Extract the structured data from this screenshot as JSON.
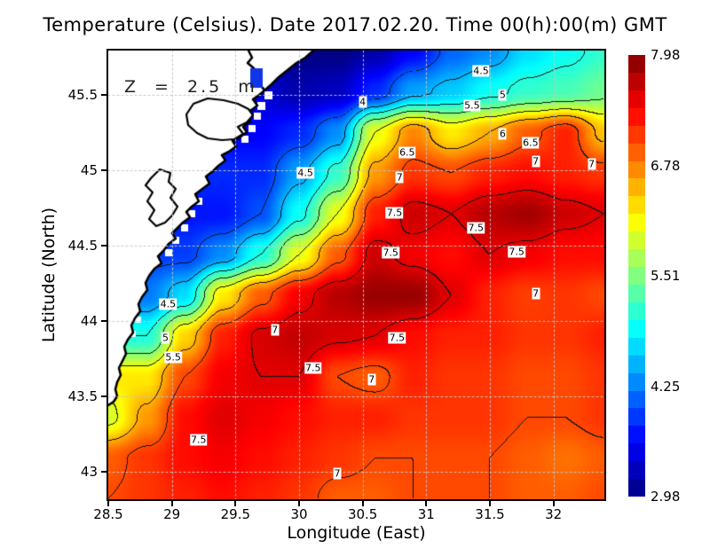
{
  "title": "Temperature (Celsius). Date 2017.02.20. Time 00(h):00(m) GMT",
  "annotation": "Z = 2.5 m",
  "axes": {
    "x": {
      "label": "Longitude (East)",
      "ticks": [
        "28.5",
        "29",
        "29.5",
        "30",
        "30.5",
        "31",
        "31.5",
        "32"
      ],
      "tick_values": [
        28.5,
        29,
        29.5,
        30,
        30.5,
        31,
        31.5,
        32
      ]
    },
    "y": {
      "label": "Latitude (North)",
      "ticks": [
        "45.5",
        "45",
        "44.5",
        "44",
        "43.5",
        "43"
      ],
      "tick_values": [
        45.5,
        45,
        44.5,
        44,
        43.5,
        43
      ]
    }
  },
  "colorbar": {
    "labels": [
      "7.98",
      "6.78",
      "5.51",
      "4.25",
      "2.98"
    ],
    "min": 2.98,
    "max": 7.98,
    "segments": 25,
    "top_color": "#8b0000",
    "bottom_color": "#00008b"
  },
  "chart_data": {
    "type": "heatmap",
    "title": "Temperature (Celsius). Date 2017.02.20. Time 00(h):00(m) GMT",
    "variable": "Temperature",
    "units": "Celsius",
    "depth_label": "Z = 2.5 m",
    "date": "2017.02.20",
    "time": "00(h):00(m) GMT",
    "xlabel": "Longitude (East)",
    "ylabel": "Latitude (North)",
    "xlim": [
      28.5,
      32.4
    ],
    "ylim": [
      42.82,
      45.79
    ],
    "grid": true,
    "colormap": "jet",
    "cmin": 2.98,
    "cmax": 7.98,
    "contour_interval": 0.5,
    "land_color": "#ffffff",
    "coast_color": "#000000",
    "lon": [
      28.5,
      28.8,
      29.1,
      29.4,
      29.7,
      30.0,
      30.3,
      30.6,
      30.9,
      31.2,
      31.5,
      31.8,
      32.1,
      32.4
    ],
    "lat": [
      45.78,
      45.51,
      45.24,
      44.97,
      44.7,
      44.43,
      44.16,
      43.89,
      43.62,
      43.35,
      43.08,
      42.81
    ],
    "values": [
      [
        null,
        null,
        null,
        null,
        null,
        null,
        3.0,
        3.2,
        3.6,
        4.1,
        4.3,
        4.7,
        4.9,
        5.1
      ],
      [
        null,
        null,
        null,
        null,
        3.4,
        3.2,
        3.3,
        3.8,
        4.4,
        4.6,
        4.9,
        5.1,
        5.2,
        5.4
      ],
      [
        null,
        null,
        null,
        null,
        3.6,
        3.8,
        4.3,
        6.0,
        6.7,
        6.2,
        6.5,
        6.9,
        7.2,
        6.4
      ],
      [
        null,
        null,
        null,
        null,
        3.8,
        4.4,
        5.1,
        6.6,
        7.1,
        7.0,
        7.2,
        7.3,
        7.2,
        7.1
      ],
      [
        null,
        null,
        null,
        3.7,
        4.0,
        4.9,
        6.0,
        7.2,
        7.6,
        7.5,
        7.7,
        7.8,
        7.6,
        7.5
      ],
      [
        null,
        null,
        3.9,
        4.3,
        5.0,
        6.0,
        6.9,
        7.6,
        7.4,
        7.3,
        7.5,
        7.4,
        7.3,
        7.3
      ],
      [
        null,
        4.2,
        4.7,
        6.2,
        6.9,
        7.4,
        7.7,
        7.85,
        7.85,
        7.5,
        7.2,
        7.05,
        7.1,
        7.0
      ],
      [
        null,
        5.0,
        6.3,
        7.2,
        7.55,
        7.65,
        7.55,
        7.5,
        7.3,
        7.2,
        7.2,
        7.1,
        7.1,
        7.2
      ],
      [
        null,
        6.2,
        7.0,
        7.4,
        7.5,
        7.5,
        7.0,
        6.9,
        7.2,
        7.1,
        7.1,
        7.0,
        7.0,
        7.1
      ],
      [
        5.9,
        6.6,
        7.3,
        7.5,
        7.4,
        7.3,
        7.2,
        7.2,
        7.1,
        7.1,
        7.1,
        7.0,
        7.0,
        7.1
      ],
      [
        6.9,
        7.1,
        7.3,
        7.4,
        7.3,
        7.2,
        7.1,
        7.0,
        7.0,
        7.0,
        7.0,
        6.9,
        6.8,
        6.9
      ],
      [
        7.0,
        7.1,
        7.2,
        7.3,
        7.2,
        7.1,
        6.9,
        6.9,
        7.0,
        7.0,
        7.0,
        6.9,
        6.9,
        7.0
      ]
    ],
    "contour_labels": [
      {
        "text": "4",
        "lon": 30.5,
        "lat": 45.45
      },
      {
        "text": "4.5",
        "lon": 31.43,
        "lat": 45.66
      },
      {
        "text": "5",
        "lon": 31.6,
        "lat": 45.5
      },
      {
        "text": "5.5",
        "lon": 31.36,
        "lat": 45.43
      },
      {
        "text": "6",
        "lon": 31.6,
        "lat": 45.24
      },
      {
        "text": "6.5",
        "lon": 31.82,
        "lat": 45.18
      },
      {
        "text": "7",
        "lon": 31.86,
        "lat": 45.06
      },
      {
        "text": "7",
        "lon": 32.3,
        "lat": 45.04
      },
      {
        "text": "6.5",
        "lon": 30.85,
        "lat": 45.12
      },
      {
        "text": "7",
        "lon": 30.79,
        "lat": 44.95
      },
      {
        "text": "4.5",
        "lon": 30.05,
        "lat": 44.98
      },
      {
        "text": "7.5",
        "lon": 30.75,
        "lat": 44.72
      },
      {
        "text": "7.5",
        "lon": 31.39,
        "lat": 44.62
      },
      {
        "text": "7.5",
        "lon": 30.72,
        "lat": 44.45
      },
      {
        "text": "7.5",
        "lon": 31.71,
        "lat": 44.46
      },
      {
        "text": "7",
        "lon": 31.86,
        "lat": 44.18
      },
      {
        "text": "4.5",
        "lon": 28.97,
        "lat": 44.11
      },
      {
        "text": "5",
        "lon": 28.95,
        "lat": 43.89
      },
      {
        "text": "5.5",
        "lon": 29.01,
        "lat": 43.76
      },
      {
        "text": "7",
        "lon": 29.81,
        "lat": 43.94
      },
      {
        "text": "7.5",
        "lon": 30.11,
        "lat": 43.69
      },
      {
        "text": "7.5",
        "lon": 30.77,
        "lat": 43.89
      },
      {
        "text": "7",
        "lon": 30.57,
        "lat": 43.61
      },
      {
        "text": "7.5",
        "lon": 29.21,
        "lat": 43.21
      },
      {
        "text": "7",
        "lon": 30.3,
        "lat": 42.99
      }
    ]
  }
}
